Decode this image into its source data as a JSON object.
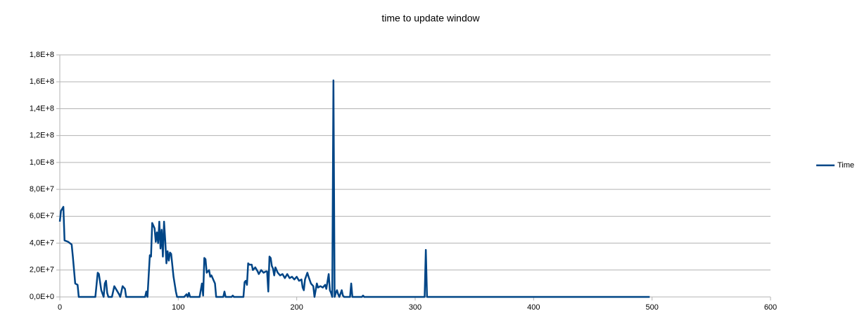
{
  "chart_data": {
    "type": "line",
    "title": "time to update window",
    "x": [
      0,
      1,
      3,
      4,
      7,
      10,
      11,
      13,
      15,
      16,
      30,
      32,
      33,
      35,
      37,
      38,
      39,
      40,
      41,
      44,
      46,
      48,
      50,
      51,
      53,
      55,
      56,
      72,
      73,
      74,
      76,
      77,
      78,
      80,
      81,
      82,
      83,
      84,
      85,
      86,
      87,
      88,
      89,
      90,
      91,
      92,
      93,
      94,
      96,
      98,
      99,
      105,
      107,
      108,
      109,
      110,
      118,
      120,
      121,
      122,
      123,
      124,
      126,
      127,
      128,
      130,
      131,
      132,
      138,
      139,
      140,
      145,
      146,
      147,
      155,
      156,
      157,
      158,
      159,
      160,
      162,
      163,
      165,
      167,
      168,
      170,
      172,
      174,
      175,
      176,
      177,
      178,
      179,
      180,
      181,
      182,
      184,
      186,
      188,
      190,
      192,
      194,
      196,
      198,
      200,
      202,
      204,
      205,
      206,
      207,
      209,
      210,
      212,
      214,
      215,
      217,
      218,
      220,
      222,
      224,
      225,
      227,
      228,
      229,
      230,
      231,
      232,
      233,
      234,
      235,
      236,
      238,
      239,
      240,
      245,
      246,
      247,
      255,
      256,
      257,
      308,
      309,
      310,
      498
    ],
    "series": [
      {
        "name": "Time",
        "color": "#004586",
        "values": [
          56000000,
          64000000,
          67000000,
          42000000,
          41000000,
          39000000,
          30000000,
          10000000,
          9000000,
          0,
          0,
          18000000,
          17000000,
          5000000,
          0,
          10000000,
          12000000,
          3000000,
          0,
          0,
          8000000,
          5000000,
          2000000,
          0,
          8000000,
          6000000,
          0,
          0,
          4000000,
          0,
          31000000,
          30000000,
          55000000,
          51000000,
          41000000,
          48000000,
          40000000,
          56000000,
          36000000,
          50000000,
          30000000,
          56000000,
          42000000,
          25000000,
          34000000,
          27000000,
          33000000,
          32000000,
          15000000,
          4000000,
          0,
          0,
          2000000,
          0,
          3000000,
          0,
          0,
          10000000,
          1000000,
          29000000,
          28000000,
          18000000,
          20000000,
          15000000,
          16000000,
          12000000,
          10000000,
          0,
          0,
          4000000,
          0,
          0,
          1000000,
          0,
          0,
          11000000,
          12000000,
          9000000,
          25000000,
          24000000,
          24000000,
          20000000,
          22000000,
          19000000,
          17000000,
          20000000,
          18000000,
          19000000,
          19000000,
          4000000,
          30000000,
          29000000,
          23000000,
          21000000,
          16000000,
          22000000,
          18000000,
          16000000,
          17000000,
          14000000,
          17000000,
          14000000,
          15000000,
          13000000,
          15000000,
          12000000,
          13000000,
          7000000,
          5000000,
          13000000,
          18000000,
          15000000,
          10000000,
          8000000,
          0,
          10000000,
          7000000,
          8000000,
          7000000,
          9000000,
          6000000,
          17000000,
          5000000,
          3000000,
          0,
          161000000,
          0,
          3000000,
          5000000,
          2000000,
          0,
          5000000,
          1000000,
          0,
          0,
          10000000,
          0,
          0,
          1000000,
          0,
          0,
          35000000,
          0,
          0
        ]
      }
    ],
    "xlim": [
      0,
      600
    ],
    "xticks": [
      0,
      100,
      200,
      300,
      400,
      500,
      600
    ],
    "ylim": [
      0,
      180000000
    ],
    "yticks": [
      {
        "value": 0,
        "label": "0,0E+0"
      },
      {
        "value": 20000000,
        "label": "2,0E+7"
      },
      {
        "value": 40000000,
        "label": "4,0E+7"
      },
      {
        "value": 60000000,
        "label": "6,0E+7"
      },
      {
        "value": 80000000,
        "label": "8,0E+7"
      },
      {
        "value": 100000000,
        "label": "1,0E+8"
      },
      {
        "value": 120000000,
        "label": "1,2E+8"
      },
      {
        "value": 140000000,
        "label": "1,4E+8"
      },
      {
        "value": 160000000,
        "label": "1,6E+8"
      },
      {
        "value": 180000000,
        "label": "1,8E+8"
      }
    ],
    "grid": true,
    "legend": "right"
  }
}
